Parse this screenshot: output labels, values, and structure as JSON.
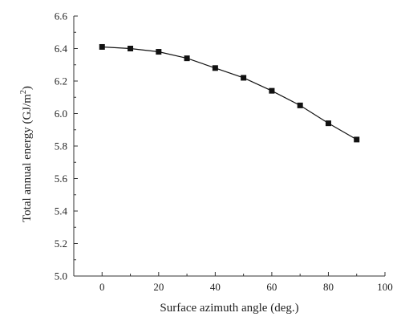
{
  "chart_data": {
    "type": "line",
    "title": "",
    "xlabel": "Surface azimuth angle (deg.)",
    "ylabel_main": "Total annual energy (GJ/m",
    "ylabel_sup": "2",
    "ylabel_close": ")",
    "xlim": [
      -10,
      100
    ],
    "ylim": [
      5.0,
      6.6
    ],
    "xticks": [
      0,
      20,
      40,
      60,
      80,
      100
    ],
    "xtick_labels": [
      "0",
      "20",
      "40",
      "60",
      "80",
      "100"
    ],
    "yticks": [
      5.0,
      5.2,
      5.4,
      5.6,
      5.8,
      6.0,
      6.2,
      6.4,
      6.6
    ],
    "ytick_labels": [
      "5.0",
      "5.2",
      "5.4",
      "5.6",
      "5.8",
      "6.0",
      "6.2",
      "6.4",
      "6.6"
    ],
    "grid": false,
    "legend": "none",
    "marker": "square",
    "series": [
      {
        "x": [
          0,
          10,
          20,
          30,
          40,
          50,
          60,
          70,
          80,
          90
        ],
        "y": [
          6.41,
          6.4,
          6.38,
          6.34,
          6.28,
          6.22,
          6.14,
          6.05,
          5.94,
          5.84
        ]
      }
    ]
  }
}
